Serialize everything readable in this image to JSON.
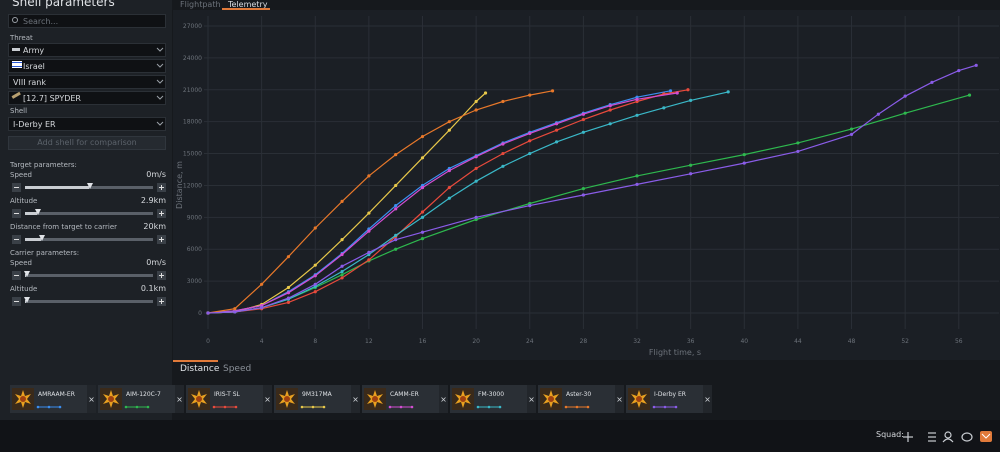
{
  "panel": {
    "title": "Shell parameters",
    "search": "Search...",
    "threat_label": "Threat",
    "selects": [
      "Army",
      "Israel",
      "VIII rank",
      "[12.7] SPYDER"
    ],
    "shell_label": "Shell",
    "shell": "I-Derby ER",
    "add_button": "Add shell for comparison",
    "target_heading": "Target parameters:",
    "target": [
      {
        "label": "Speed",
        "value": "0m/s"
      },
      {
        "label": "Altitude",
        "value": "2.9km"
      },
      {
        "label": "Distance from target to carrier",
        "value": "20km"
      }
    ],
    "carrier_heading": "Carrier parameters:",
    "carrier": [
      {
        "label": "Speed",
        "value": "0m/s"
      },
      {
        "label": "Altitude",
        "value": "0.1km"
      }
    ]
  },
  "top_tabs": [
    "Flightpath",
    "Telemetry"
  ],
  "bottom_tabs": [
    "Distance",
    "Speed"
  ],
  "squad_label": "Squad:",
  "chart_data": {
    "type": "line",
    "x_label": "Flight time, s",
    "y_label": "Distance, m",
    "xlim": [
      0,
      59
    ],
    "ylim": [
      0,
      27000
    ],
    "xticks": [
      0,
      4,
      8,
      12,
      16,
      20,
      24,
      28,
      32,
      36,
      40,
      44,
      48,
      52,
      56
    ],
    "yticks": [
      0,
      3000,
      6000,
      9000,
      12000,
      15000,
      18000,
      21000,
      24000,
      27000
    ],
    "grid": true,
    "series": [
      {
        "name": "AMRAAM-ER",
        "color": "#3b8ef0",
        "x": [
          0,
          2,
          4,
          6,
          8,
          10,
          12,
          14,
          16,
          18,
          20,
          22,
          24,
          26,
          28,
          30,
          32,
          34.5
        ],
        "values": [
          0,
          200,
          700,
          2000,
          3600,
          5600,
          7900,
          10100,
          12000,
          13600,
          14800,
          16000,
          17000,
          17900,
          18800,
          19600,
          20300,
          20900
        ]
      },
      {
        "name": "AIM-120C-7",
        "color": "#2eb84e",
        "x": [
          0,
          2,
          4,
          6,
          8,
          10,
          12,
          14,
          16,
          20,
          24,
          28,
          32,
          36,
          40,
          44,
          48,
          52,
          56.8
        ],
        "values": [
          0,
          100,
          500,
          1300,
          2400,
          3600,
          4900,
          6000,
          7000,
          8800,
          10300,
          11700,
          12900,
          13900,
          14900,
          16000,
          17300,
          18800,
          20500
        ]
      },
      {
        "name": "IRIS-T SL",
        "color": "#e84a3c",
        "x": [
          0,
          2,
          4,
          6,
          8,
          10,
          12,
          14,
          16,
          18,
          20,
          22,
          24,
          26,
          28,
          30,
          32,
          34,
          35.8
        ],
        "values": [
          0,
          100,
          400,
          1000,
          2000,
          3300,
          5000,
          7200,
          9500,
          11800,
          13600,
          15000,
          16200,
          17200,
          18200,
          19100,
          19900,
          20600,
          21000
        ]
      },
      {
        "name": "9M317MA",
        "color": "#e8c84a",
        "x": [
          0,
          2,
          4,
          6,
          8,
          10,
          12,
          14,
          16,
          18,
          20,
          20.7
        ],
        "values": [
          0,
          100,
          800,
          2400,
          4500,
          6900,
          9400,
          12000,
          14600,
          17200,
          19900,
          20700
        ]
      },
      {
        "name": "CAMM-ER",
        "color": "#d24ed2",
        "x": [
          0,
          2,
          4,
          6,
          8,
          10,
          12,
          14,
          16,
          18,
          20,
          22,
          24,
          26,
          28,
          30,
          32,
          35
        ],
        "values": [
          0,
          200,
          700,
          1900,
          3500,
          5500,
          7700,
          9800,
          11800,
          13400,
          14700,
          15900,
          16900,
          17800,
          18700,
          19500,
          20100,
          20700
        ]
      },
      {
        "name": "FM-3000",
        "color": "#3ab8c8",
        "x": [
          0,
          2,
          4,
          6,
          8,
          10,
          12,
          14,
          16,
          18,
          20,
          22,
          24,
          26,
          28,
          30,
          32,
          34,
          36,
          38.8
        ],
        "values": [
          0,
          100,
          500,
          1300,
          2500,
          3900,
          5500,
          7300,
          9000,
          10800,
          12400,
          13800,
          15000,
          16100,
          17000,
          17800,
          18600,
          19300,
          20000,
          20800
        ]
      },
      {
        "name": "Aster-30",
        "color": "#e8782a",
        "x": [
          0,
          2,
          4,
          6,
          8,
          10,
          12,
          14,
          16,
          18,
          20,
          22,
          24,
          25.7
        ],
        "values": [
          0,
          400,
          2700,
          5300,
          8000,
          10500,
          12900,
          14900,
          16600,
          18000,
          19100,
          19900,
          20500,
          20900
        ]
      },
      {
        "name": "I-Derby ER",
        "color": "#8a5ce8",
        "x": [
          0,
          2,
          4,
          6,
          8,
          10,
          12,
          14,
          16,
          20,
          24,
          28,
          32,
          36,
          40,
          44,
          48,
          50,
          52,
          54,
          56,
          57.3
        ],
        "values": [
          0,
          100,
          500,
          1400,
          2700,
          4400,
          5700,
          6900,
          7600,
          9000,
          10100,
          11100,
          12100,
          13100,
          14100,
          15200,
          16800,
          18700,
          20400,
          21700,
          22800,
          23300
        ]
      }
    ]
  }
}
